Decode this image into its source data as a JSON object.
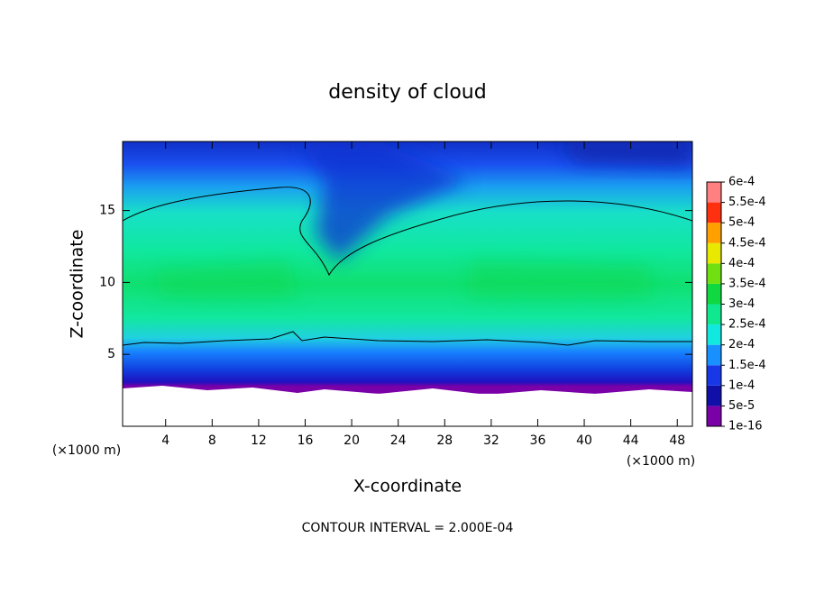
{
  "chart_data": {
    "type": "contour",
    "title": "density of cloud",
    "x_label": "X-coordinate",
    "y_label": "Z-coordinate",
    "x_unit": "(×1000 m)",
    "y_unit": "(×1000 m)",
    "note": "CONTOUR INTERVAL = 2.000E-04",
    "xlim": [
      0.3,
      49.3
    ],
    "ylim": [
      0,
      19.8
    ],
    "xticks": [
      4,
      8,
      12,
      16,
      20,
      24,
      28,
      32,
      36,
      40,
      44,
      48
    ],
    "yticks": [
      5,
      10,
      15
    ],
    "colorbar": {
      "levels": [
        {
          "value": 1e-16,
          "label": "1e-16"
        },
        {
          "value": 5e-05,
          "label": "5e-5"
        },
        {
          "value": 0.0001,
          "label": "1e-4"
        },
        {
          "value": 0.00015,
          "label": "1.5e-4"
        },
        {
          "value": 0.0002,
          "label": "2e-4"
        },
        {
          "value": 0.00025,
          "label": "2.5e-4"
        },
        {
          "value": 0.0003,
          "label": "3e-4"
        },
        {
          "value": 0.00035,
          "label": "3.5e-4"
        },
        {
          "value": 0.0004,
          "label": "4e-4"
        },
        {
          "value": 0.00045,
          "label": "4.5e-4"
        },
        {
          "value": 0.0005,
          "label": "5e-4"
        },
        {
          "value": 0.00055,
          "label": "5.5e-4"
        },
        {
          "value": 0.0006,
          "label": "6e-4"
        }
      ],
      "colors": [
        "#7a00a8",
        "#1010a8",
        "#1838e8",
        "#1890ff",
        "#10e8e0",
        "#10e890",
        "#10d840",
        "#70e010",
        "#e8e800",
        "#ffa000",
        "#ff3010",
        "#ff8080"
      ]
    }
  }
}
